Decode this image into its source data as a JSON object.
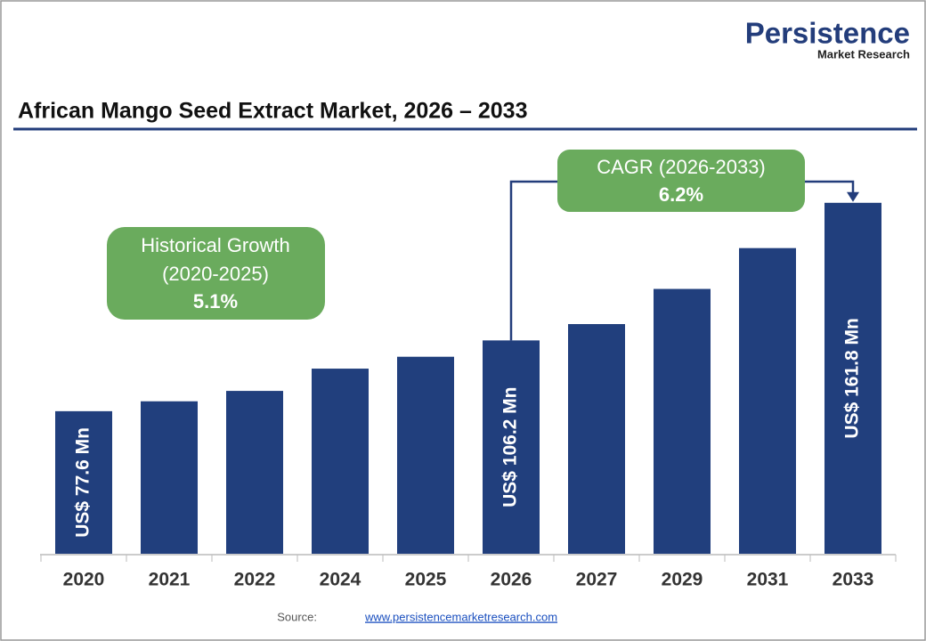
{
  "chart_data": {
    "type": "bar",
    "title": "African Mango Seed Extract Market, 2026 – 2033",
    "brand": {
      "name": "Persistence",
      "tagline": "Market Research"
    },
    "categories": [
      "2020",
      "2021",
      "2022",
      "2024",
      "2025",
      "2026",
      "2027",
      "2029",
      "2031",
      "2033"
    ],
    "values": [
      77.6,
      81.6,
      85.8,
      94.8,
      99.6,
      106.2,
      112.8,
      127.0,
      143.5,
      161.8
    ],
    "value_labels": [
      "US$ 77.6 Mn",
      null,
      null,
      null,
      null,
      "US$ 106.2 Mn",
      null,
      null,
      null,
      "US$ 161.8 Mn"
    ],
    "color": "#213f7d",
    "ylim": [
      20,
      170
    ],
    "annotations": {
      "historical": {
        "label": "Historical Growth",
        "period": "(2020-2025)",
        "value": "5.1%"
      },
      "cagr": {
        "label": "CAGR (2026-2033)",
        "value": "6.2%"
      }
    },
    "source": {
      "label": "Source:",
      "link": "www.persistencemarketresearch.com"
    }
  }
}
